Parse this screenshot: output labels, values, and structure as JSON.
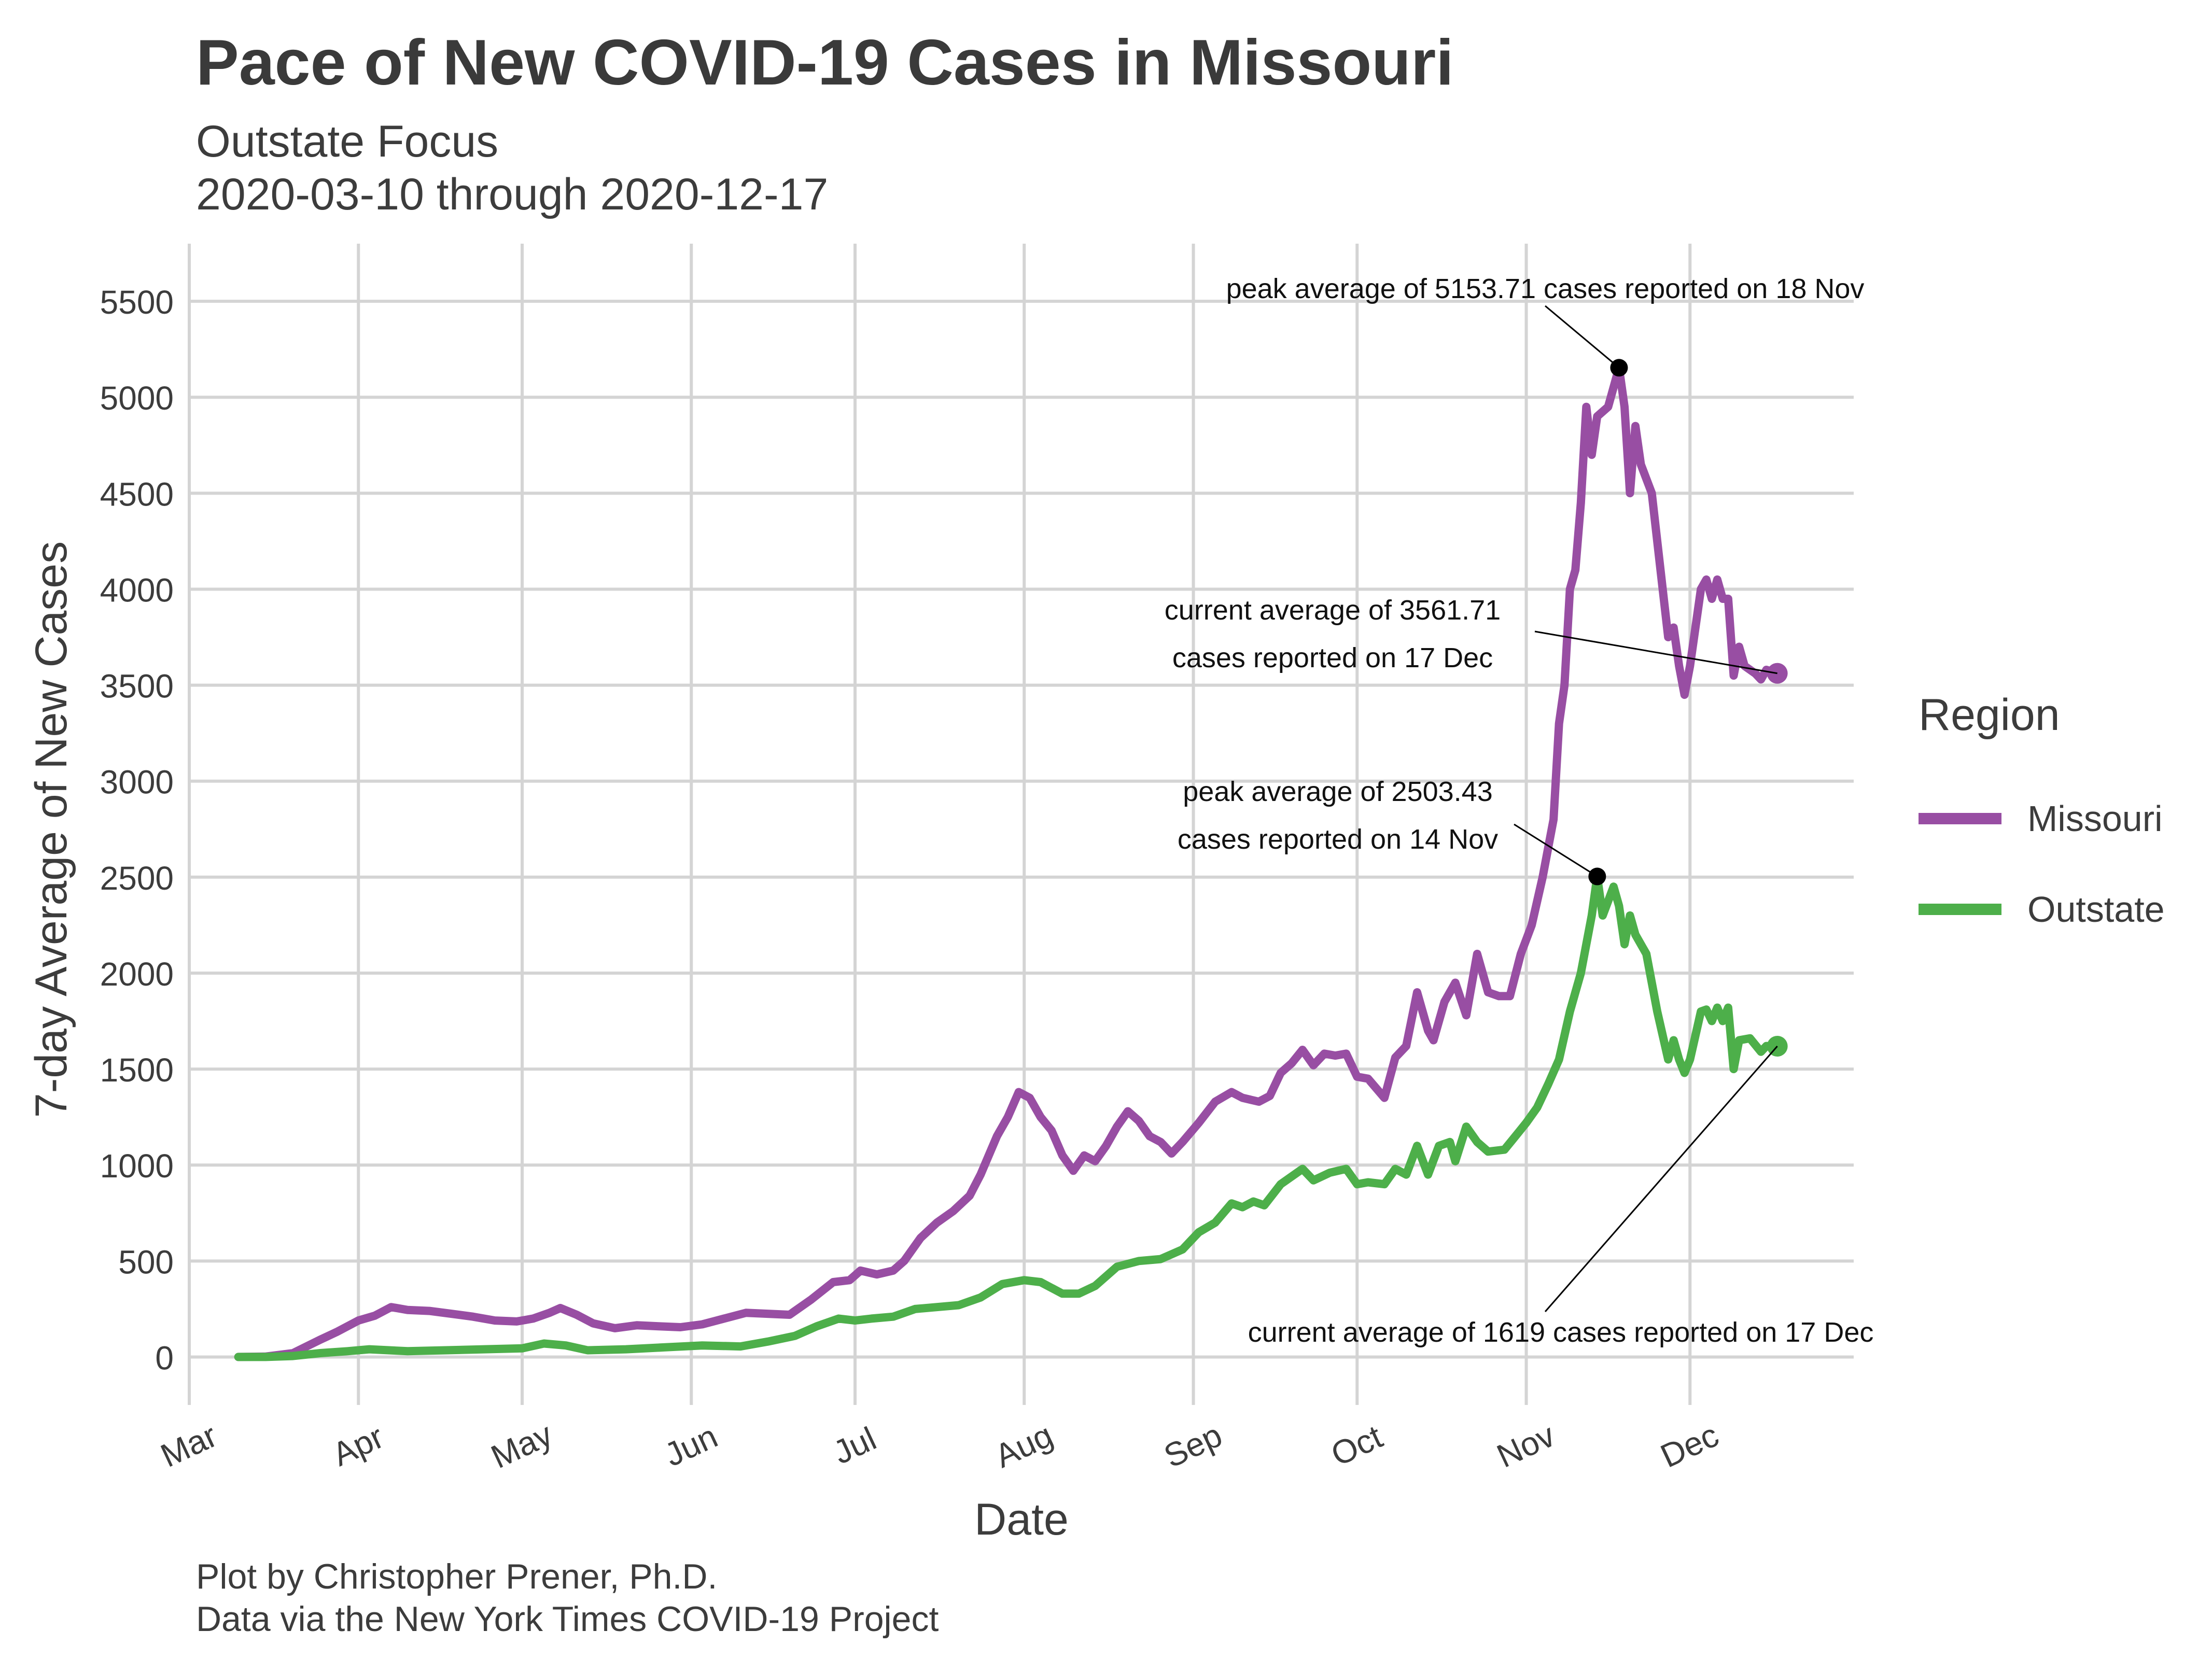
{
  "chart_data": {
    "type": "line",
    "title": "Pace of New COVID-19 Cases in Missouri",
    "subtitle": [
      "Outstate Focus",
      "2020-03-10 through 2020-12-17"
    ],
    "xlabel": "Date",
    "ylabel": "7-day Average of New Cases",
    "xlim": [
      "2020-03-01",
      "2020-12-31"
    ],
    "ylim": [
      -250,
      5800
    ],
    "x_ticks": [
      {
        "date": "2020-03-01",
        "label": "Mar"
      },
      {
        "date": "2020-04-01",
        "label": "Apr"
      },
      {
        "date": "2020-05-01",
        "label": "May"
      },
      {
        "date": "2020-06-01",
        "label": "Jun"
      },
      {
        "date": "2020-07-01",
        "label": "Jul"
      },
      {
        "date": "2020-08-01",
        "label": "Aug"
      },
      {
        "date": "2020-09-01",
        "label": "Sep"
      },
      {
        "date": "2020-10-01",
        "label": "Oct"
      },
      {
        "date": "2020-11-01",
        "label": "Nov"
      },
      {
        "date": "2020-12-01",
        "label": "Dec"
      }
    ],
    "y_ticks": [
      0,
      500,
      1000,
      1500,
      2000,
      2500,
      3000,
      3500,
      4000,
      4500,
      5000,
      5500
    ],
    "grid": true,
    "legend": {
      "title": "Region",
      "position": "right"
    },
    "series": [
      {
        "name": "Missouri",
        "color": "#984ea3",
        "points": [
          [
            "2020-03-10",
            0
          ],
          [
            "2020-03-15",
            2
          ],
          [
            "2020-03-20",
            20
          ],
          [
            "2020-03-25",
            90
          ],
          [
            "2020-03-28",
            130
          ],
          [
            "2020-04-01",
            190
          ],
          [
            "2020-04-04",
            215
          ],
          [
            "2020-04-07",
            260
          ],
          [
            "2020-04-10",
            245
          ],
          [
            "2020-04-14",
            240
          ],
          [
            "2020-04-18",
            225
          ],
          [
            "2020-04-22",
            210
          ],
          [
            "2020-04-26",
            190
          ],
          [
            "2020-04-30",
            185
          ],
          [
            "2020-05-03",
            200
          ],
          [
            "2020-05-06",
            230
          ],
          [
            "2020-05-08",
            255
          ],
          [
            "2020-05-11",
            220
          ],
          [
            "2020-05-14",
            175
          ],
          [
            "2020-05-18",
            150
          ],
          [
            "2020-05-22",
            165
          ],
          [
            "2020-05-26",
            160
          ],
          [
            "2020-05-30",
            155
          ],
          [
            "2020-06-03",
            170
          ],
          [
            "2020-06-07",
            200
          ],
          [
            "2020-06-11",
            230
          ],
          [
            "2020-06-15",
            225
          ],
          [
            "2020-06-19",
            220
          ],
          [
            "2020-06-23",
            300
          ],
          [
            "2020-06-27",
            390
          ],
          [
            "2020-06-30",
            400
          ],
          [
            "2020-07-02",
            450
          ],
          [
            "2020-07-05",
            430
          ],
          [
            "2020-07-08",
            450
          ],
          [
            "2020-07-10",
            500
          ],
          [
            "2020-07-13",
            620
          ],
          [
            "2020-07-16",
            700
          ],
          [
            "2020-07-19",
            760
          ],
          [
            "2020-07-22",
            840
          ],
          [
            "2020-07-24",
            950
          ],
          [
            "2020-07-27",
            1150
          ],
          [
            "2020-07-29",
            1250
          ],
          [
            "2020-07-31",
            1380
          ],
          [
            "2020-08-02",
            1350
          ],
          [
            "2020-08-04",
            1250
          ],
          [
            "2020-08-06",
            1180
          ],
          [
            "2020-08-08",
            1050
          ],
          [
            "2020-08-10",
            970
          ],
          [
            "2020-08-12",
            1050
          ],
          [
            "2020-08-14",
            1020
          ],
          [
            "2020-08-16",
            1100
          ],
          [
            "2020-08-18",
            1200
          ],
          [
            "2020-08-20",
            1280
          ],
          [
            "2020-08-22",
            1230
          ],
          [
            "2020-08-24",
            1150
          ],
          [
            "2020-08-26",
            1120
          ],
          [
            "2020-08-28",
            1060
          ],
          [
            "2020-08-30",
            1120
          ],
          [
            "2020-09-02",
            1220
          ],
          [
            "2020-09-05",
            1330
          ],
          [
            "2020-09-08",
            1380
          ],
          [
            "2020-09-10",
            1350
          ],
          [
            "2020-09-13",
            1330
          ],
          [
            "2020-09-15",
            1360
          ],
          [
            "2020-09-17",
            1480
          ],
          [
            "2020-09-19",
            1530
          ],
          [
            "2020-09-21",
            1600
          ],
          [
            "2020-09-23",
            1520
          ],
          [
            "2020-09-25",
            1580
          ],
          [
            "2020-09-27",
            1570
          ],
          [
            "2020-09-29",
            1580
          ],
          [
            "2020-10-01",
            1460
          ],
          [
            "2020-10-03",
            1450
          ],
          [
            "2020-10-06",
            1350
          ],
          [
            "2020-10-08",
            1560
          ],
          [
            "2020-10-10",
            1620
          ],
          [
            "2020-10-12",
            1900
          ],
          [
            "2020-10-14",
            1700
          ],
          [
            "2020-10-15",
            1650
          ],
          [
            "2020-10-17",
            1850
          ],
          [
            "2020-10-19",
            1950
          ],
          [
            "2020-10-21",
            1780
          ],
          [
            "2020-10-23",
            2100
          ],
          [
            "2020-10-25",
            1900
          ],
          [
            "2020-10-27",
            1880
          ],
          [
            "2020-10-29",
            1880
          ],
          [
            "2020-10-31",
            2100
          ],
          [
            "2020-11-02",
            2250
          ],
          [
            "2020-11-04",
            2500
          ],
          [
            "2020-11-06",
            2800
          ],
          [
            "2020-11-07",
            3300
          ],
          [
            "2020-11-08",
            3500
          ],
          [
            "2020-11-09",
            4000
          ],
          [
            "2020-11-10",
            4100
          ],
          [
            "2020-11-11",
            4450
          ],
          [
            "2020-11-12",
            4950
          ],
          [
            "2020-11-13",
            4700
          ],
          [
            "2020-11-14",
            4900
          ],
          [
            "2020-11-16",
            4950
          ],
          [
            "2020-11-18",
            5153.71
          ],
          [
            "2020-11-19",
            4950
          ],
          [
            "2020-11-20",
            4500
          ],
          [
            "2020-11-21",
            4850
          ],
          [
            "2020-11-22",
            4650
          ],
          [
            "2020-11-24",
            4500
          ],
          [
            "2020-11-26",
            4000
          ],
          [
            "2020-11-27",
            3750
          ],
          [
            "2020-11-28",
            3800
          ],
          [
            "2020-11-29",
            3600
          ],
          [
            "2020-11-30",
            3450
          ],
          [
            "2020-12-01",
            3600
          ],
          [
            "2020-12-03",
            4000
          ],
          [
            "2020-12-04",
            4050
          ],
          [
            "2020-12-05",
            3950
          ],
          [
            "2020-12-06",
            4050
          ],
          [
            "2020-12-07",
            3950
          ],
          [
            "2020-12-08",
            3950
          ],
          [
            "2020-12-09",
            3550
          ],
          [
            "2020-12-10",
            3700
          ],
          [
            "2020-12-11",
            3600
          ],
          [
            "2020-12-13",
            3560
          ],
          [
            "2020-12-14",
            3530
          ],
          [
            "2020-12-15",
            3580
          ],
          [
            "2020-12-17",
            3561.71
          ]
        ]
      },
      {
        "name": "Outstate",
        "color": "#4daf4a",
        "points": [
          [
            "2020-03-10",
            0
          ],
          [
            "2020-03-15",
            0
          ],
          [
            "2020-03-20",
            5
          ],
          [
            "2020-03-25",
            20
          ],
          [
            "2020-03-30",
            30
          ],
          [
            "2020-04-03",
            40
          ],
          [
            "2020-04-10",
            30
          ],
          [
            "2020-04-17",
            35
          ],
          [
            "2020-04-24",
            40
          ],
          [
            "2020-05-01",
            45
          ],
          [
            "2020-05-05",
            70
          ],
          [
            "2020-05-09",
            60
          ],
          [
            "2020-05-13",
            35
          ],
          [
            "2020-05-20",
            40
          ],
          [
            "2020-05-27",
            50
          ],
          [
            "2020-06-03",
            60
          ],
          [
            "2020-06-10",
            55
          ],
          [
            "2020-06-15",
            80
          ],
          [
            "2020-06-20",
            110
          ],
          [
            "2020-06-24",
            160
          ],
          [
            "2020-06-28",
            200
          ],
          [
            "2020-07-01",
            190
          ],
          [
            "2020-07-04",
            200
          ],
          [
            "2020-07-08",
            210
          ],
          [
            "2020-07-12",
            250
          ],
          [
            "2020-07-16",
            260
          ],
          [
            "2020-07-20",
            270
          ],
          [
            "2020-07-24",
            310
          ],
          [
            "2020-07-28",
            380
          ],
          [
            "2020-08-01",
            400
          ],
          [
            "2020-08-04",
            390
          ],
          [
            "2020-08-08",
            330
          ],
          [
            "2020-08-11",
            330
          ],
          [
            "2020-08-14",
            370
          ],
          [
            "2020-08-18",
            470
          ],
          [
            "2020-08-22",
            500
          ],
          [
            "2020-08-26",
            510
          ],
          [
            "2020-08-30",
            560
          ],
          [
            "2020-09-02",
            650
          ],
          [
            "2020-09-05",
            700
          ],
          [
            "2020-09-08",
            800
          ],
          [
            "2020-09-10",
            780
          ],
          [
            "2020-09-12",
            810
          ],
          [
            "2020-09-14",
            790
          ],
          [
            "2020-09-17",
            900
          ],
          [
            "2020-09-21",
            980
          ],
          [
            "2020-09-23",
            920
          ],
          [
            "2020-09-26",
            960
          ],
          [
            "2020-09-29",
            980
          ],
          [
            "2020-10-01",
            900
          ],
          [
            "2020-10-03",
            910
          ],
          [
            "2020-10-06",
            900
          ],
          [
            "2020-10-08",
            980
          ],
          [
            "2020-10-10",
            950
          ],
          [
            "2020-10-12",
            1100
          ],
          [
            "2020-10-14",
            950
          ],
          [
            "2020-10-16",
            1100
          ],
          [
            "2020-10-18",
            1120
          ],
          [
            "2020-10-19",
            1020
          ],
          [
            "2020-10-21",
            1200
          ],
          [
            "2020-10-23",
            1120
          ],
          [
            "2020-10-25",
            1070
          ],
          [
            "2020-10-28",
            1080
          ],
          [
            "2020-10-30",
            1150
          ],
          [
            "2020-11-01",
            1220
          ],
          [
            "2020-11-03",
            1300
          ],
          [
            "2020-11-05",
            1420
          ],
          [
            "2020-11-07",
            1550
          ],
          [
            "2020-11-09",
            1800
          ],
          [
            "2020-11-11",
            2000
          ],
          [
            "2020-11-12",
            2150
          ],
          [
            "2020-11-13",
            2300
          ],
          [
            "2020-11-14",
            2503.43
          ],
          [
            "2020-11-15",
            2300
          ],
          [
            "2020-11-17",
            2450
          ],
          [
            "2020-11-18",
            2350
          ],
          [
            "2020-11-19",
            2150
          ],
          [
            "2020-11-20",
            2300
          ],
          [
            "2020-11-21",
            2200
          ],
          [
            "2020-11-23",
            2100
          ],
          [
            "2020-11-25",
            1800
          ],
          [
            "2020-11-27",
            1550
          ],
          [
            "2020-11-28",
            1650
          ],
          [
            "2020-11-29",
            1550
          ],
          [
            "2020-11-30",
            1480
          ],
          [
            "2020-12-01",
            1550
          ],
          [
            "2020-12-03",
            1800
          ],
          [
            "2020-12-04",
            1810
          ],
          [
            "2020-12-05",
            1750
          ],
          [
            "2020-12-06",
            1820
          ],
          [
            "2020-12-07",
            1750
          ],
          [
            "2020-12-08",
            1820
          ],
          [
            "2020-12-09",
            1500
          ],
          [
            "2020-12-10",
            1650
          ],
          [
            "2020-12-12",
            1660
          ],
          [
            "2020-12-14",
            1590
          ],
          [
            "2020-12-15",
            1620
          ],
          [
            "2020-12-17",
            1619
          ]
        ]
      }
    ],
    "annotations": [
      {
        "lines": [
          "peak average of 5153.71 cases reported on 18 Nov"
        ],
        "date": "2020-11-18",
        "value": 5153.71,
        "marker": true
      },
      {
        "lines": [
          "current average of 3561.71",
          "cases reported on 17 Dec"
        ],
        "date": "2020-12-17",
        "value": 3561.71,
        "marker": false
      },
      {
        "lines": [
          "peak average of 2503.43",
          "cases reported on 14 Nov"
        ],
        "date": "2020-11-14",
        "value": 2503.43,
        "marker": true
      },
      {
        "lines": [
          "current average of 1619 cases reported on 17 Dec"
        ],
        "date": "2020-12-17",
        "value": 1619,
        "marker": false
      }
    ],
    "caption": [
      "Plot by Christopher Prener, Ph.D.",
      "Data via the New York Times COVID-19 Project"
    ]
  }
}
